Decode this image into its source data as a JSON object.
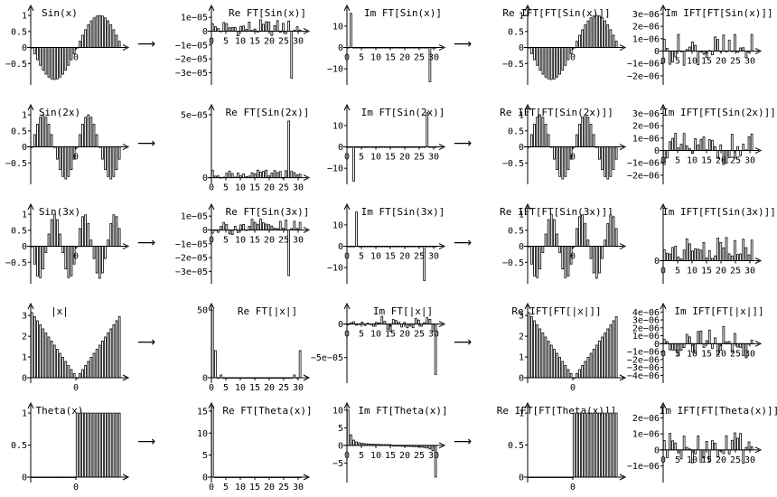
{
  "chart_data": {
    "type": "bar",
    "rows": [
      {
        "name": "sin",
        "panels": [
          {
            "title": "Sin(x)",
            "kind": "sin1",
            "ylim": [
              -1,
              1.2
            ],
            "yticks": [
              -0.5,
              0,
              0.5,
              1
            ],
            "ytick_labels": [
              "−0.5",
              "0",
              "0.5",
              "1"
            ],
            "xtick_label": "0"
          },
          {
            "title": "Re FT[Sin(x)]",
            "kind": "ft_re_small",
            "ylim": [
              -3.5e-05,
              1.6e-05
            ],
            "yticks": [
              1e-05,
              0,
              -1e-05,
              -2e-05,
              -3e-05
            ],
            "ytick_labels": [
              "1e−05",
              "0",
              "−1e−05",
              "−2e−05",
              "−3e−05"
            ],
            "spike": 28,
            "spike_value": -3.4e-05
          },
          {
            "title": "Im FT[Sin(x)]",
            "kind": "ft_im",
            "ylim": [
              -15,
              18
            ],
            "yticks": [
              10,
              0,
              -10
            ],
            "ytick_labels": [
              "10",
              "0",
              "−10"
            ],
            "spikes": [
              [
                1,
                16
              ],
              [
                29,
                -16
              ]
            ]
          },
          {
            "title": "Re IFT[FT[Sin(x)]]",
            "kind": "sin1",
            "ylim": [
              -1,
              1.2
            ],
            "yticks": [
              -0.5,
              0,
              0.5,
              1
            ],
            "ytick_labels": [
              "−0.5",
              "0",
              "0.5",
              "1"
            ],
            "xtick_label": "0"
          },
          {
            "title": "Im IFT[FT[Sin(x)]]",
            "kind": "noise",
            "ylim": [
              -2.3e-06,
              3.4e-06
            ],
            "yticks": [
              3e-06,
              2e-06,
              1e-06,
              0,
              -1e-06,
              -2e-06
            ],
            "ytick_labels": [
              "3e−06",
              "2e−06",
              "1e−06",
              "0",
              "−1e−06",
              "−2e−06"
            ]
          }
        ]
      },
      {
        "name": "sin2",
        "panels": [
          {
            "title": "Sin(2x)",
            "kind": "sin2",
            "ylim": [
              -1,
              1.2
            ],
            "yticks": [
              -0.5,
              0,
              0.5,
              1
            ],
            "ytick_labels": [
              "−0.5",
              "0",
              "0.5",
              "1"
            ],
            "xtick_label": "0"
          },
          {
            "title": "Re FT[Sin(2x)]",
            "kind": "ft_re_pos",
            "ylim": [
              -1e-06,
              5.5e-05
            ],
            "yticks": [
              5e-05,
              0
            ],
            "ytick_labels": [
              "5e−05",
              "0"
            ],
            "spike": 27,
            "spike_value": 4.5e-05
          },
          {
            "title": "Im FT[Sin(2x)]",
            "kind": "ft_im",
            "ylim": [
              -15,
              18
            ],
            "yticks": [
              10,
              0,
              -10
            ],
            "ytick_labels": [
              "10",
              "0",
              "−10"
            ],
            "spikes": [
              [
                2,
                -16
              ],
              [
                28,
                16
              ]
            ]
          },
          {
            "title": "Re IFT[FT[Sin(2x)]]",
            "kind": "sin2",
            "ylim": [
              -1,
              1.2
            ],
            "yticks": [
              -0.5,
              0,
              0.5,
              1
            ],
            "ytick_labels": [
              "−0.5",
              "0",
              "0.5",
              "1"
            ],
            "xtick_label": "0"
          },
          {
            "title": "Im IFT[FT[Sin(2x)]]",
            "kind": "noise",
            "ylim": [
              -2.3e-06,
              3.4e-06
            ],
            "yticks": [
              3e-06,
              2e-06,
              1e-06,
              0,
              -1e-06,
              -2e-06
            ],
            "ytick_labels": [
              "3e−06",
              "2e−06",
              "1e−06",
              "0",
              "−1e−06",
              "−2e−06"
            ]
          }
        ]
      },
      {
        "name": "sin3",
        "panels": [
          {
            "title": "Sin(3x)",
            "kind": "sin3",
            "ylim": [
              -1,
              1.2
            ],
            "yticks": [
              -0.5,
              0,
              0.5,
              1
            ],
            "ytick_labels": [
              "−0.5",
              "0",
              "0.5",
              "1"
            ],
            "xtick_label": "0"
          },
          {
            "title": "Re FT[Sin(3x)]",
            "kind": "ft_re_small",
            "ylim": [
              -3.5e-05,
              1.6e-05
            ],
            "yticks": [
              1e-05,
              0,
              -1e-05,
              -2e-05,
              -3e-05
            ],
            "ytick_labels": [
              "1e−05",
              "0",
              "−1e−05",
              "−2e−05",
              "−3e−05"
            ],
            "spike": 27,
            "spike_value": -3.3e-05
          },
          {
            "title": "Im FT[Sin(3x)]",
            "kind": "ft_im",
            "ylim": [
              -15,
              18
            ],
            "yticks": [
              10,
              0,
              -10
            ],
            "ytick_labels": [
              "10",
              "0",
              "−10"
            ],
            "spikes": [
              [
                3,
                16
              ],
              [
                27,
                -16
              ]
            ]
          },
          {
            "title": "Re IFT[FT[Sin(3x)]]",
            "kind": "sin3",
            "ylim": [
              -1,
              1.2
            ],
            "yticks": [
              -0.5,
              0,
              0.5,
              1
            ],
            "ytick_labels": [
              "−0.5",
              "0",
              "0.5",
              "1"
            ],
            "xtick_label": "0"
          },
          {
            "title": "Im IFT[FT[Sin(3x)]]",
            "kind": "noise_pos",
            "ylim": [
              -4e-07,
              1.2e-06
            ],
            "yticks": [
              0
            ],
            "ytick_labels": [
              "0"
            ]
          }
        ]
      },
      {
        "name": "abs",
        "panels": [
          {
            "title": "|x|",
            "kind": "abs",
            "ylim": [
              0,
              3.4
            ],
            "yticks": [
              0,
              1,
              2,
              3
            ],
            "ytick_labels": [
              "0",
              "1",
              "2",
              "3"
            ],
            "xtick_label": "0"
          },
          {
            "title": "Re FT[|x|]",
            "kind": "ft_abs",
            "ylim": [
              0,
              52
            ],
            "yticks": [
              50,
              0
            ],
            "ytick_labels": [
              "50",
              "0"
            ]
          },
          {
            "title": "Im FT[|x|]",
            "kind": "ft_abs_im",
            "ylim": [
              -8e-05,
              2.5e-05
            ],
            "yticks": [
              0,
              -5e-05
            ],
            "ytick_labels": [
              "0",
              "−5e−05"
            ]
          },
          {
            "title": "Re IFT[FT[|x|]]",
            "kind": "abs",
            "ylim": [
              0,
              3.4
            ],
            "yticks": [
              0,
              1,
              2,
              3
            ],
            "ytick_labels": [
              "0",
              "1",
              "2",
              "3"
            ],
            "xtick_label": "0"
          },
          {
            "title": "Im IFT[FT[|x|]]",
            "kind": "noise",
            "ylim": [
              -4.3e-06,
              4.6e-06
            ],
            "yticks": [
              4e-06,
              3e-06,
              2e-06,
              1e-06,
              0,
              -1e-06,
              -2e-06,
              -3e-06,
              -4e-06
            ],
            "ytick_labels": [
              "4e−06",
              "3e−06",
              "2e−06",
              "1e−06",
              "0",
              "−1e−06",
              "−2e−06",
              "−3e−06",
              "−4e−06"
            ]
          }
        ]
      },
      {
        "name": "theta",
        "panels": [
          {
            "title": "Theta(x)",
            "kind": "theta",
            "ylim": [
              0,
              1.1
            ],
            "yticks": [
              0,
              0.5,
              1
            ],
            "ytick_labels": [
              "0",
              "0.5",
              "1"
            ],
            "xtick_label": "0"
          },
          {
            "title": "Re FT[Theta(x)]",
            "kind": "ft_theta",
            "ylim": [
              0,
              16
            ],
            "yticks": [
              0,
              5,
              10,
              15
            ],
            "ytick_labels": [
              "0",
              "5",
              "10",
              "15"
            ]
          },
          {
            "title": "Im FT[Theta(x)]",
            "kind": "ft_theta_im",
            "ylim": [
              -9,
              11
            ],
            "yticks": [
              10,
              5,
              0,
              -5
            ],
            "ytick_labels": [
              "10",
              "5",
              "0",
              "−5"
            ]
          },
          {
            "title": "Re IFT[FT[Theta(x)]]",
            "kind": "theta",
            "ylim": [
              0,
              1.1
            ],
            "yticks": [
              0,
              0.5,
              1
            ],
            "ytick_labels": [
              "0",
              "0.5",
              "1"
            ],
            "xtick_label": "0"
          },
          {
            "title": "Im IFT[FT[Theta(x)]]",
            "kind": "noise",
            "ylim": [
              -1.7e-06,
              2.7e-06
            ],
            "yticks": [
              2e-06,
              1e-06,
              0,
              -1e-06
            ],
            "ytick_labels": [
              "2e−06",
              "1e−06",
              "0",
              "−1e−06"
            ]
          }
        ]
      }
    ],
    "freq_xticks": [
      0,
      5,
      10,
      15,
      20,
      25,
      30
    ],
    "n_samples": 32,
    "arrow_glyph": "⟶"
  }
}
